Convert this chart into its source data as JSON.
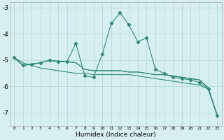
{
  "xlabel": "Humidex (Indice chaleur)",
  "x": [
    0,
    1,
    2,
    3,
    4,
    5,
    6,
    7,
    8,
    9,
    10,
    11,
    12,
    13,
    14,
    15,
    16,
    17,
    18,
    19,
    20,
    21,
    22,
    23
  ],
  "line_spiky": [
    -4.9,
    -5.2,
    -5.15,
    -5.1,
    -5.0,
    -5.05,
    -5.05,
    -4.35,
    -5.6,
    -5.65,
    -4.75,
    -3.6,
    -3.2,
    -3.65,
    -4.3,
    -4.15,
    -5.35,
    -5.5,
    -5.65,
    -5.7,
    -5.75,
    -5.85,
    -6.1,
    -7.1
  ],
  "line_smooth1": [
    -4.9,
    -5.2,
    -5.15,
    -5.1,
    -5.0,
    -5.05,
    -5.05,
    -5.1,
    -5.35,
    -5.4,
    -5.4,
    -5.4,
    -5.4,
    -5.45,
    -5.45,
    -5.5,
    -5.55,
    -5.55,
    -5.6,
    -5.65,
    -5.7,
    -5.75,
    -6.05,
    -7.1
  ],
  "line_smooth2": [
    -4.9,
    -5.2,
    -5.15,
    -5.1,
    -5.0,
    -5.05,
    -5.05,
    -5.1,
    -5.35,
    -5.4,
    -5.4,
    -5.4,
    -5.4,
    -5.45,
    -5.45,
    -5.5,
    -5.55,
    -5.55,
    -5.6,
    -5.65,
    -5.7,
    -5.75,
    -6.05,
    -7.1
  ],
  "line_diagonal": [
    -4.9,
    -5.1,
    -5.2,
    -5.3,
    -5.35,
    -5.4,
    -5.45,
    -5.5,
    -5.5,
    -5.55,
    -5.55,
    -5.55,
    -5.55,
    -5.55,
    -5.6,
    -5.65,
    -5.7,
    -5.75,
    -5.8,
    -5.85,
    -5.9,
    -5.95,
    -6.1,
    -7.1
  ],
  "color": "#2d8b7a",
  "bg_color": "#d8eff2",
  "grid_color": "#b8dde0",
  "ylim": [
    -7.5,
    -2.8
  ],
  "yticks": [
    -7,
    -6,
    -5,
    -4,
    -3
  ],
  "xlim": [
    -0.5,
    23.5
  ]
}
